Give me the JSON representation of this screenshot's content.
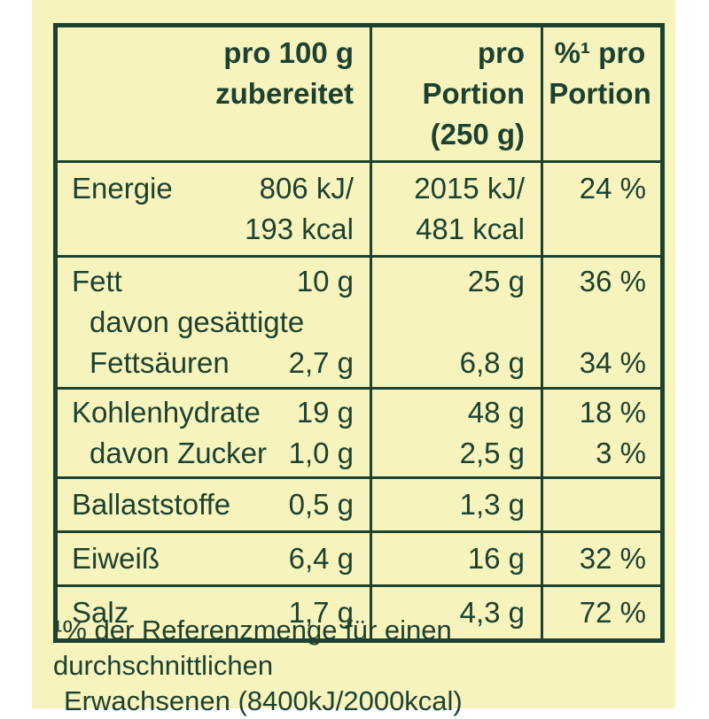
{
  "colors": {
    "page_background": "#ffffff",
    "panel_background": "#f7f3bd",
    "ink_green": "#1d4130"
  },
  "table": {
    "header": {
      "per100": [
        "pro 100 g",
        "zubereitet"
      ],
      "portion": [
        "pro Portion",
        "(250 g)"
      ],
      "percent": [
        "%¹ pro",
        "Portion"
      ]
    },
    "rows": [
      {
        "name": "Energie",
        "lines": [
          {
            "label": "Energie",
            "v100": "806 kJ/",
            "vpor": "2015 kJ/",
            "pct": "24 %"
          },
          {
            "label": "",
            "v100": "193 kcal",
            "vpor": "481 kcal",
            "pct": ""
          }
        ]
      },
      {
        "name": "Fett",
        "lines": [
          {
            "label": "Fett",
            "v100": "10 g",
            "vpor": "25 g",
            "pct": "36 %"
          },
          {
            "label": "davon gesättigte",
            "v100": "",
            "vpor": "",
            "pct": ""
          },
          {
            "label": "Fettsäuren",
            "v100": "2,7 g",
            "vpor": "6,8 g",
            "pct": "34 %"
          }
        ]
      },
      {
        "name": "Kohlenhydrate",
        "lines": [
          {
            "label": "Kohlenhydrate",
            "v100": "19 g",
            "vpor": "48 g",
            "pct": "18 %"
          },
          {
            "label": "davon Zucker",
            "v100": "1,0 g",
            "vpor": "2,5 g",
            "pct": "3 %"
          }
        ]
      },
      {
        "name": "Ballaststoffe",
        "lines": [
          {
            "label": "Ballaststoffe",
            "v100": "0,5 g",
            "vpor": "1,3 g",
            "pct": ""
          }
        ]
      },
      {
        "name": "Eiweiß",
        "lines": [
          {
            "label": "Eiweiß",
            "v100": "6,4 g",
            "vpor": "16 g",
            "pct": "32 %"
          }
        ]
      },
      {
        "name": "Salz",
        "lines": [
          {
            "label": "Salz",
            "v100": "1,7 g",
            "vpor": "4,3 g",
            "pct": "72 %"
          }
        ]
      }
    ]
  },
  "footnote": {
    "line1": "¹% der Referenzmenge für einen durchschnittlichen",
    "line2": "Erwachsenen (8400kJ/2000kcal)"
  }
}
